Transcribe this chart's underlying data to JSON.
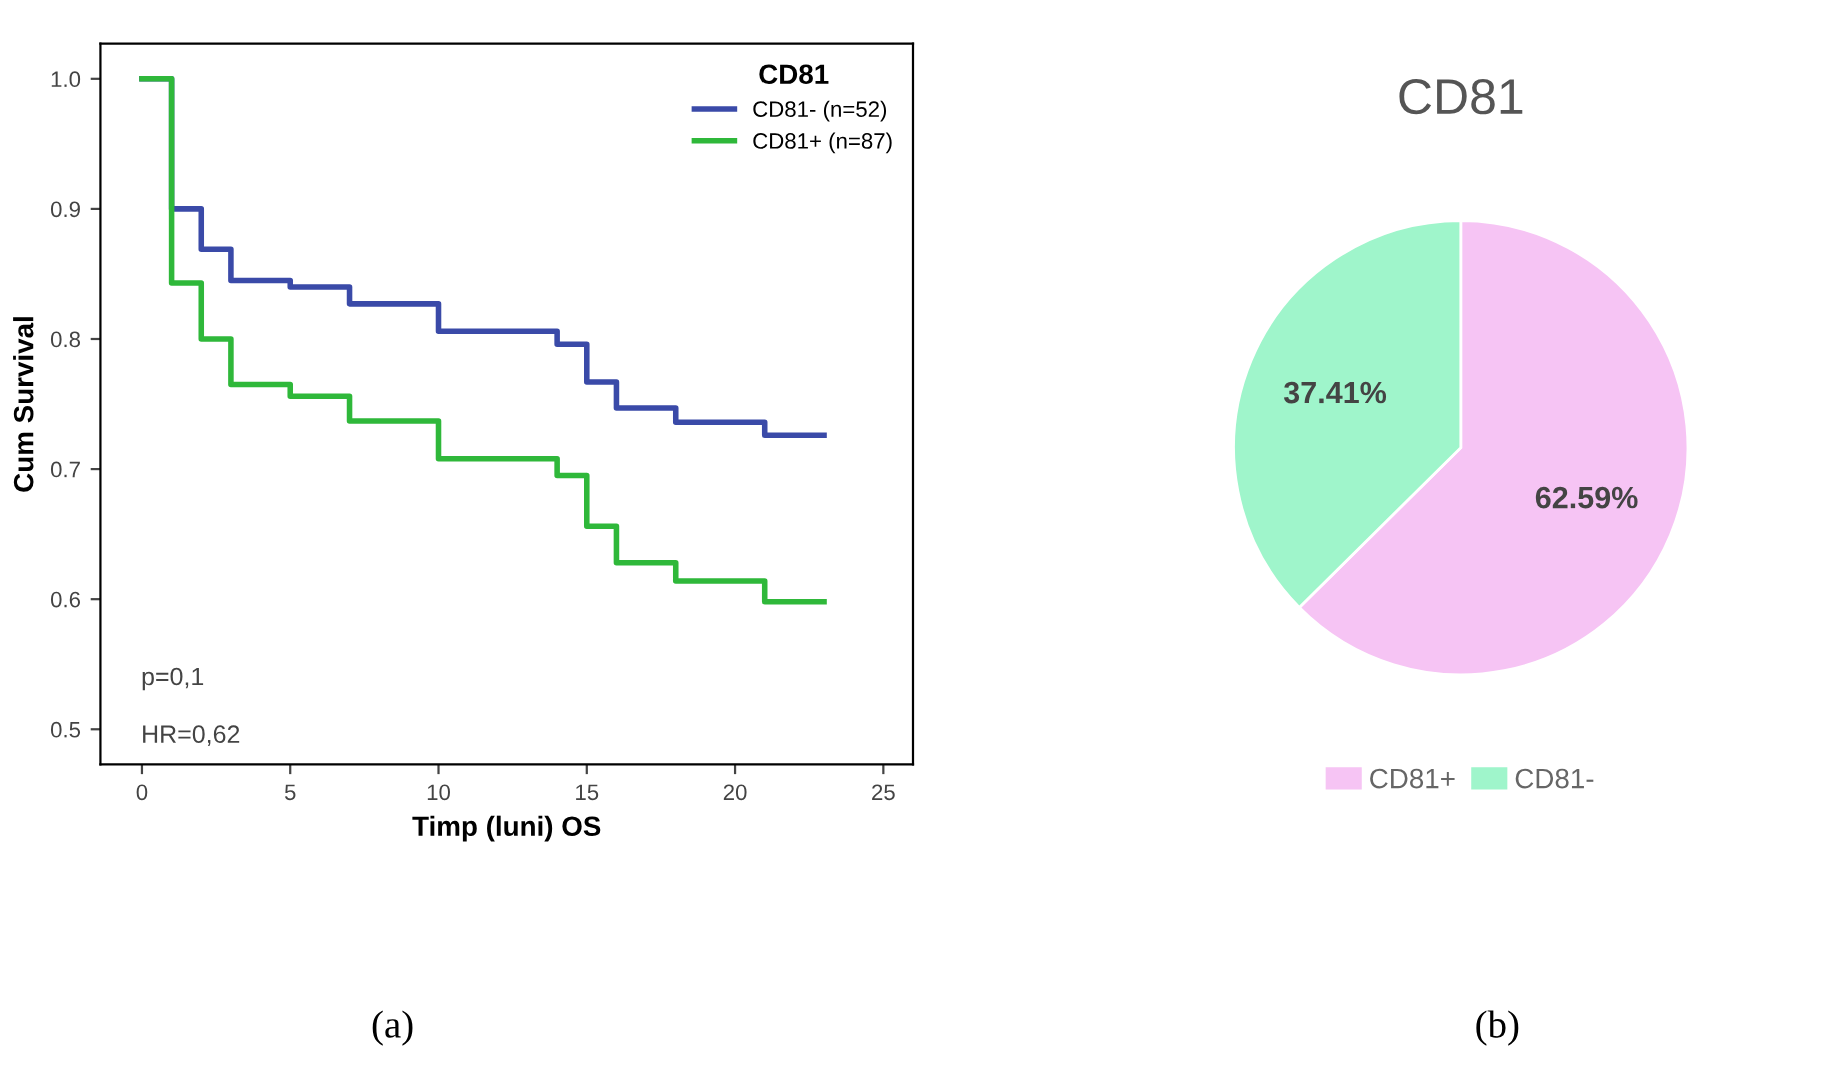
{
  "chart_data": [
    {
      "type": "step",
      "xlabel": "Timp (luni) OS",
      "ylabel": "Cum Survival",
      "legend_title": "CD81",
      "legend": "top right",
      "xlim": [
        -1.4,
        26
      ],
      "ylim": [
        0.473,
        1.027
      ],
      "xticks": [
        0,
        5,
        10,
        15,
        20,
        25
      ],
      "yticks": [
        {
          "value": 0.5,
          "label": "0.5"
        },
        {
          "value": 0.6,
          "label": "0.6"
        },
        {
          "value": 0.7,
          "label": "0.7"
        },
        {
          "value": 0.8,
          "label": "0.8"
        },
        {
          "value": 0.9,
          "label": "0.9"
        },
        {
          "value": 1.0,
          "label": "1.0"
        }
      ],
      "grid": false,
      "annotations": [
        "p=0,1",
        "HR=0,62",
        "(a)"
      ],
      "series": [
        {
          "name": "CD81- (n=52)",
          "color": "#3a4aa8",
          "x": [
            0,
            1,
            2,
            3,
            5,
            7,
            10,
            14,
            15,
            16,
            18,
            21,
            23
          ],
          "values": [
            1.0,
            0.9,
            0.869,
            0.845,
            0.84,
            0.827,
            0.806,
            0.796,
            0.767,
            0.747,
            0.736,
            0.726,
            0.726
          ]
        },
        {
          "name": "CD81+ (n=87)",
          "color": "#2fb83a",
          "x": [
            0,
            1,
            2,
            3,
            5,
            7,
            10,
            14,
            15,
            16,
            18,
            21,
            23
          ],
          "values": [
            1.0,
            0.843,
            0.8,
            0.765,
            0.756,
            0.737,
            0.708,
            0.695,
            0.656,
            0.628,
            0.614,
            0.598,
            0.598
          ]
        }
      ]
    },
    {
      "type": "pie",
      "title": "CD81",
      "categories": [
        "CD81+",
        "CD81-"
      ],
      "values": [
        62.59,
        37.41
      ],
      "colors": [
        "#f6c4f4",
        "#9ff5cb"
      ],
      "value_labels": [
        "62.59%",
        "37.41%"
      ],
      "legend": "bottom",
      "annotations": [
        "(b)"
      ]
    }
  ]
}
